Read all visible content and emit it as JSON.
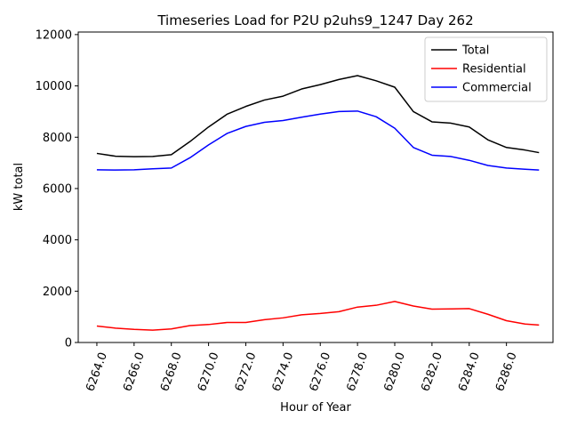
{
  "chart_data": {
    "type": "line",
    "title": "Timeseries Load for P2U p2uhs9_1247  Day 262",
    "xlabel": "Hour of Year",
    "ylabel": "kW total",
    "xlim": [
      6263.0,
      6288.5
    ],
    "ylim": [
      0,
      12100
    ],
    "x_ticks": [
      6264,
      6266,
      6268,
      6270,
      6272,
      6274,
      6276,
      6278,
      6280,
      6282,
      6284,
      6286
    ],
    "x_tick_labels": [
      "6264.0",
      "6266.0",
      "6268.0",
      "6270.0",
      "6272.0",
      "6274.0",
      "6276.0",
      "6278.0",
      "6280.0",
      "6282.0",
      "6284.0",
      "6286.0"
    ],
    "y_ticks": [
      0,
      2000,
      4000,
      6000,
      8000,
      10000,
      12000
    ],
    "y_tick_labels": [
      "0",
      "2000",
      "4000",
      "6000",
      "8000",
      "10000",
      "12000"
    ],
    "grid": false,
    "legend_position": "top-right",
    "x": [
      6264,
      6265,
      6266,
      6267,
      6268,
      6269,
      6270,
      6271,
      6272,
      6273,
      6274,
      6275,
      6276,
      6277,
      6278,
      6279,
      6280,
      6281,
      6282,
      6283,
      6284,
      6285,
      6286,
      6287,
      6287.75
    ],
    "series": [
      {
        "name": "Total",
        "color": "#000000",
        "values": [
          7370,
          7260,
          7240,
          7250,
          7320,
          7830,
          8400,
          8900,
          9200,
          9450,
          9600,
          9880,
          10050,
          10250,
          10400,
          10200,
          9950,
          9000,
          8600,
          8550,
          8400,
          7900,
          7600,
          7500,
          7400
        ]
      },
      {
        "name": "Residential",
        "color": "#ff0000",
        "values": [
          640,
          560,
          510,
          480,
          530,
          660,
          700,
          780,
          780,
          890,
          960,
          1080,
          1130,
          1200,
          1380,
          1450,
          1600,
          1420,
          1300,
          1310,
          1320,
          1100,
          850,
          720,
          680
        ]
      },
      {
        "name": "Commercial",
        "color": "#0000ff",
        "values": [
          6730,
          6720,
          6730,
          6770,
          6800,
          7200,
          7700,
          8150,
          8420,
          8580,
          8650,
          8780,
          8900,
          9000,
          9020,
          8800,
          8350,
          7600,
          7300,
          7250,
          7100,
          6900,
          6800,
          6750,
          6720
        ]
      }
    ]
  }
}
